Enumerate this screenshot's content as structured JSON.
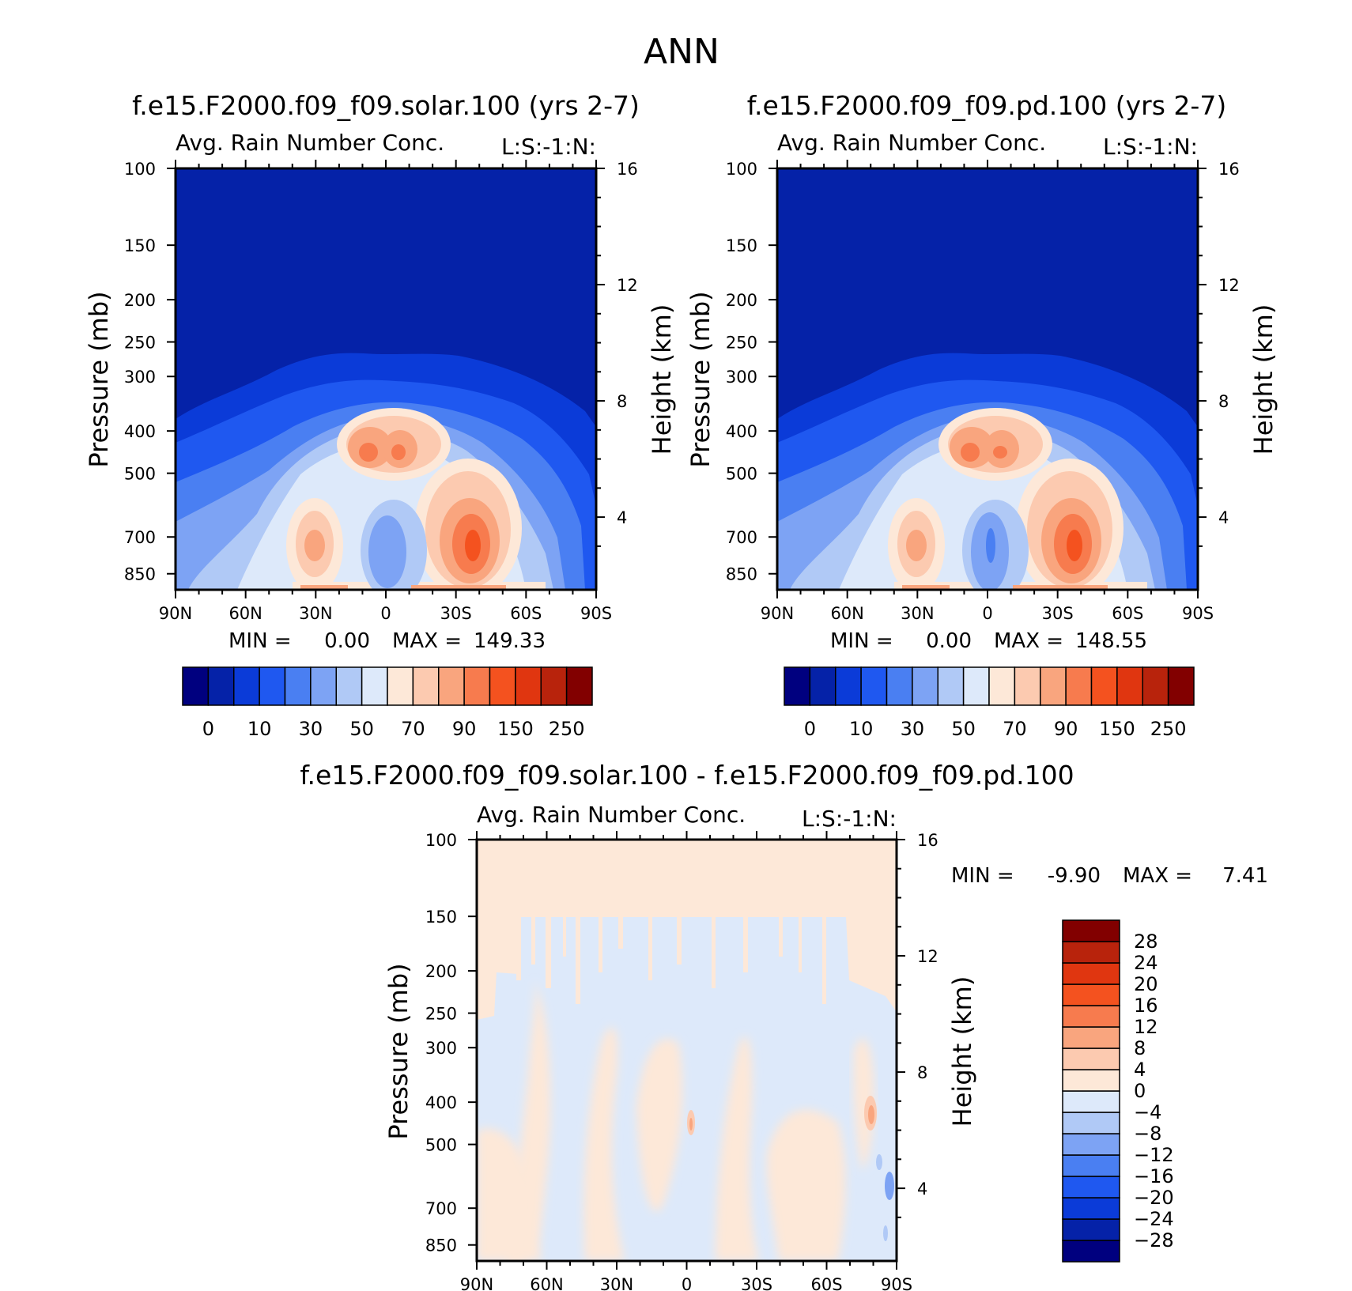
{
  "figure": {
    "title": "ANN"
  },
  "colors": {
    "absolute_scale": [
      "#00007f",
      "#0522a8",
      "#0b3bd8",
      "#1f58f0",
      "#4a7ff2",
      "#7da3f4",
      "#b0c9f6",
      "#dde9fa",
      "#fde8d8",
      "#fccab0",
      "#f9a57e",
      "#f77b4e",
      "#f4521f",
      "#e03610",
      "#b8230c",
      "#820000"
    ],
    "difference_scale": [
      "#00007f",
      "#0522a8",
      "#0b3bd8",
      "#1f58f0",
      "#4a7ff2",
      "#7da3f4",
      "#b0c9f6",
      "#dde9fa",
      "#fde8d8",
      "#fccab0",
      "#f9a57e",
      "#f77b4e",
      "#f4521f",
      "#e03610",
      "#b8230c",
      "#820000"
    ]
  },
  "chart_data": [
    {
      "type": "heatmap",
      "title": "f.e15.F2000.f09_f09.solar.100 (yrs 2-7)",
      "subtitle": "Avg. Rain Number Conc.",
      "corner_label": "L:S:-1:N:",
      "xlabel": "",
      "ylabel": "Pressure (mb)",
      "y2label": "Height (km)",
      "x_ticks": [
        "90N",
        "60N",
        "30N",
        "0",
        "30S",
        "60S",
        "90S"
      ],
      "y_ticks": [
        "100",
        "150",
        "200",
        "250",
        "300",
        "400",
        "500",
        "700",
        "850"
      ],
      "y2_ticks": [
        "16",
        "12",
        "8",
        "4"
      ],
      "min_text": "MIN =",
      "min_value": "0.00",
      "max_text": "MAX =",
      "max_value": "149.33",
      "min": 0.0,
      "max": 149.33,
      "colorbar_levels": [
        0,
        5,
        10,
        20,
        30,
        40,
        50,
        60,
        70,
        80,
        90,
        100,
        150,
        200,
        250
      ],
      "colorbar_labels": [
        "0",
        "10",
        "30",
        "50",
        "70",
        "90",
        "150",
        "250"
      ],
      "features": [
        {
          "name": "upper troposphere",
          "value": 0
        },
        {
          "name": "paired maxima near equator ~450 mb",
          "value": 90
        },
        {
          "name": "maximum ~30S ~700 mb",
          "value": 149.33
        },
        {
          "name": "maximum ~30N ~700 mb",
          "value": 80
        }
      ]
    },
    {
      "type": "heatmap",
      "title": "f.e15.F2000.f09_f09.pd.100 (yrs 2-7)",
      "subtitle": "Avg. Rain Number Conc.",
      "corner_label": "L:S:-1:N:",
      "xlabel": "",
      "ylabel": "Pressure (mb)",
      "y2label": "Height (km)",
      "x_ticks": [
        "90N",
        "60N",
        "30N",
        "0",
        "30S",
        "60S",
        "90S"
      ],
      "y_ticks": [
        "100",
        "150",
        "200",
        "250",
        "300",
        "400",
        "500",
        "700",
        "850"
      ],
      "y2_ticks": [
        "16",
        "12",
        "8",
        "4"
      ],
      "min_text": "MIN =",
      "min_value": "0.00",
      "max_text": "MAX =",
      "max_value": "148.55",
      "min": 0.0,
      "max": 148.55,
      "colorbar_levels": [
        0,
        5,
        10,
        20,
        30,
        40,
        50,
        60,
        70,
        80,
        90,
        100,
        150,
        200,
        250
      ],
      "colorbar_labels": [
        "0",
        "10",
        "30",
        "50",
        "70",
        "90",
        "150",
        "250"
      ],
      "features": [
        {
          "name": "upper troposphere",
          "value": 0
        },
        {
          "name": "paired maxima near equator ~450 mb",
          "value": 90
        },
        {
          "name": "maximum ~30S ~700 mb",
          "value": 148.55
        },
        {
          "name": "maximum ~30N ~700 mb",
          "value": 80
        }
      ]
    },
    {
      "type": "heatmap",
      "title": "f.e15.F2000.f09_f09.solar.100 - f.e15.F2000.f09_f09.pd.100",
      "subtitle": "Avg. Rain Number Conc.",
      "corner_label": "L:S:-1:N:",
      "xlabel": "",
      "ylabel": "Pressure (mb)",
      "y2label": "Height (km)",
      "x_ticks": [
        "90N",
        "60N",
        "30N",
        "0",
        "30S",
        "60S",
        "90S"
      ],
      "y_ticks": [
        "100",
        "150",
        "200",
        "250",
        "300",
        "400",
        "500",
        "700",
        "850"
      ],
      "y2_ticks": [
        "16",
        "12",
        "8",
        "4"
      ],
      "min_text": "MIN =",
      "min_value": "-9.90",
      "max_text": "MAX =",
      "max_value": "7.41",
      "min": -9.9,
      "max": 7.41,
      "colorbar_levels": [
        -28,
        -24,
        -20,
        -16,
        -12,
        -8,
        -4,
        0,
        4,
        8,
        12,
        16,
        20,
        24,
        28
      ],
      "colorbar_labels": [
        "28",
        "24",
        "20",
        "16",
        "12",
        "8",
        "4",
        "0",
        "-4",
        "-8",
        "-12",
        "-16",
        "-20",
        "-24",
        "-28"
      ]
    }
  ]
}
